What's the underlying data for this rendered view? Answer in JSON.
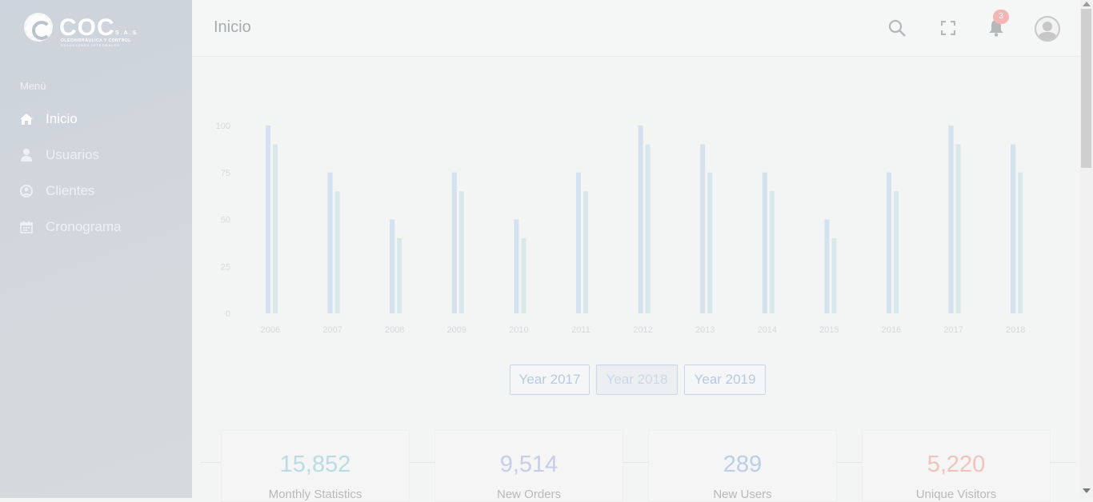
{
  "brand": {
    "logo_text": "COC",
    "logo_suffix": "S.A.S",
    "logo_sub1": "OLEOHIDRÁULICA Y CONTROL",
    "logo_sub2": "SOLUCIONES INTEGRALES"
  },
  "sidebar": {
    "menu_title": "Menú",
    "items": [
      {
        "label": "Inicio",
        "icon": "home-icon"
      },
      {
        "label": "Usuarios",
        "icon": "user-icon"
      },
      {
        "label": "Clientes",
        "icon": "user-circle-icon"
      },
      {
        "label": "Cronograma",
        "icon": "calendar-icon"
      }
    ]
  },
  "header": {
    "title": "Inicio",
    "notification_count": "3"
  },
  "chart_data": {
    "type": "bar",
    "categories": [
      "2006",
      "2007",
      "2008",
      "2009",
      "2010",
      "2011",
      "2012",
      "2013",
      "2014",
      "2015",
      "2016",
      "2017",
      "2018"
    ],
    "series": [
      {
        "values": [
          100,
          75,
          50,
          75,
          50,
          75,
          100,
          90,
          75,
          50,
          75,
          100,
          90
        ]
      },
      {
        "values": [
          90,
          65,
          40,
          65,
          40,
          65,
          90,
          75,
          65,
          40,
          65,
          90,
          75
        ]
      }
    ],
    "yticks": [
      "0",
      "25",
      "50",
      "75",
      "100"
    ],
    "ylim": [
      0,
      100
    ],
    "colors": [
      "#d4e1ee",
      "#d8e8eb"
    ]
  },
  "year_buttons": [
    "Year 2017",
    "Year 2018",
    "Year 2019"
  ],
  "stats": [
    {
      "value": "15,852",
      "label": "Monthly Statistics",
      "color": "#b9dbe4"
    },
    {
      "value": "9,514",
      "label": "New Orders",
      "color": "#c5cde9"
    },
    {
      "value": "289",
      "label": "New Users",
      "color": "#bccde6"
    },
    {
      "value": "5,220",
      "label": "Unique Visitors",
      "color": "#f1c2bd"
    }
  ]
}
